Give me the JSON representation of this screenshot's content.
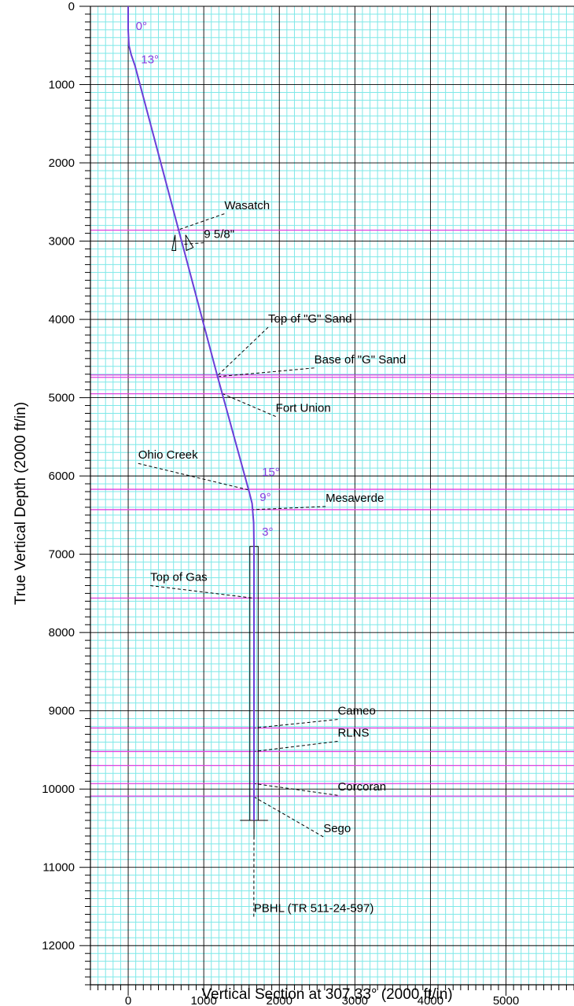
{
  "chart_data": {
    "type": "line",
    "title": "",
    "xlabel": "Vertical Section at 307.33° (2000 ft/in)",
    "ylabel": "True Vertical Depth (2000 ft/in)",
    "xlim": [
      -500,
      5900
    ],
    "ylim": [
      12500,
      0
    ],
    "x_ticks": [
      "0",
      "1000",
      "2000",
      "3000",
      "4000",
      "5000"
    ],
    "y_ticks": [
      "0",
      "1000",
      "2000",
      "3000",
      "4000",
      "5000",
      "6000",
      "7000",
      "8000",
      "9000",
      "10000",
      "11000",
      "12000"
    ],
    "grid": true,
    "colors": {
      "wellpath": "#6a3ed8",
      "angle_labels": "#8a3ee0",
      "formation_lines": "#e040e0",
      "minor_grid": "#7fe8e8",
      "major_grid": "#000000"
    },
    "series": [
      {
        "x": [
          0,
          0,
          10,
          40,
          90,
          1180,
          1600,
          1640,
          1660,
          1665,
          1665,
          1665
        ],
        "y": [
          0,
          300,
          500,
          620,
          760,
          4720,
          6200,
          6350,
          6600,
          6900,
          9500,
          10400
        ]
      }
    ],
    "formation_depths": [
      2860,
      4710,
      4740,
      4950,
      6170,
      6430,
      7560,
      9220,
      9520,
      9700,
      9930,
      10090
    ],
    "angle_labels": [
      {
        "text": "0°",
        "x": 100,
        "y": 300
      },
      {
        "text": "13°",
        "x": 170,
        "y": 730
      },
      {
        "text": "15°",
        "x": 1770,
        "y": 6000
      },
      {
        "text": "9°",
        "x": 1740,
        "y": 6320
      },
      {
        "text": "3°",
        "x": 1770,
        "y": 6760
      }
    ],
    "annotations": [
      {
        "text": "Wasatch",
        "x": 1210,
        "y": 2590,
        "tx": 650,
        "ty": 2860
      },
      {
        "text": "9 5/8\"",
        "x": 940,
        "y": 2960,
        "tx": 740,
        "ty": 3040
      },
      {
        "text": "Top of \"G\" Sand",
        "x": 1790,
        "y": 4040,
        "tx": 1180,
        "ty": 4720
      },
      {
        "text": "Base of \"G\" Sand",
        "x": 2400,
        "y": 4560,
        "tx": 1200,
        "ty": 4730
      },
      {
        "text": "Fort Union",
        "x": 1890,
        "y": 5180,
        "tx": 1250,
        "ty": 4950
      },
      {
        "text": "Ohio Creek",
        "x": 70,
        "y": 5780,
        "tx": 1600,
        "ty": 6180
      },
      {
        "text": "Mesaverde",
        "x": 2550,
        "y": 6330,
        "tx": 1650,
        "ty": 6430
      },
      {
        "text": "Top of Gas",
        "x": 230,
        "y": 7340,
        "tx": 1650,
        "ty": 7560
      },
      {
        "text": "Cameo",
        "x": 2710,
        "y": 9050,
        "tx": 1665,
        "ty": 9220
      },
      {
        "text": "RLNS",
        "x": 2710,
        "y": 9330,
        "tx": 1665,
        "ty": 9520
      },
      {
        "text": "Corcoran",
        "x": 2710,
        "y": 10020,
        "tx": 1665,
        "ty": 9930
      },
      {
        "text": "Sego",
        "x": 2520,
        "y": 10550,
        "tx": 1665,
        "ty": 10100
      },
      {
        "text": "PBHL (TR 511-24-597)",
        "x": 1600,
        "y": 11570,
        "tx": 1665,
        "ty": 10400
      }
    ]
  }
}
